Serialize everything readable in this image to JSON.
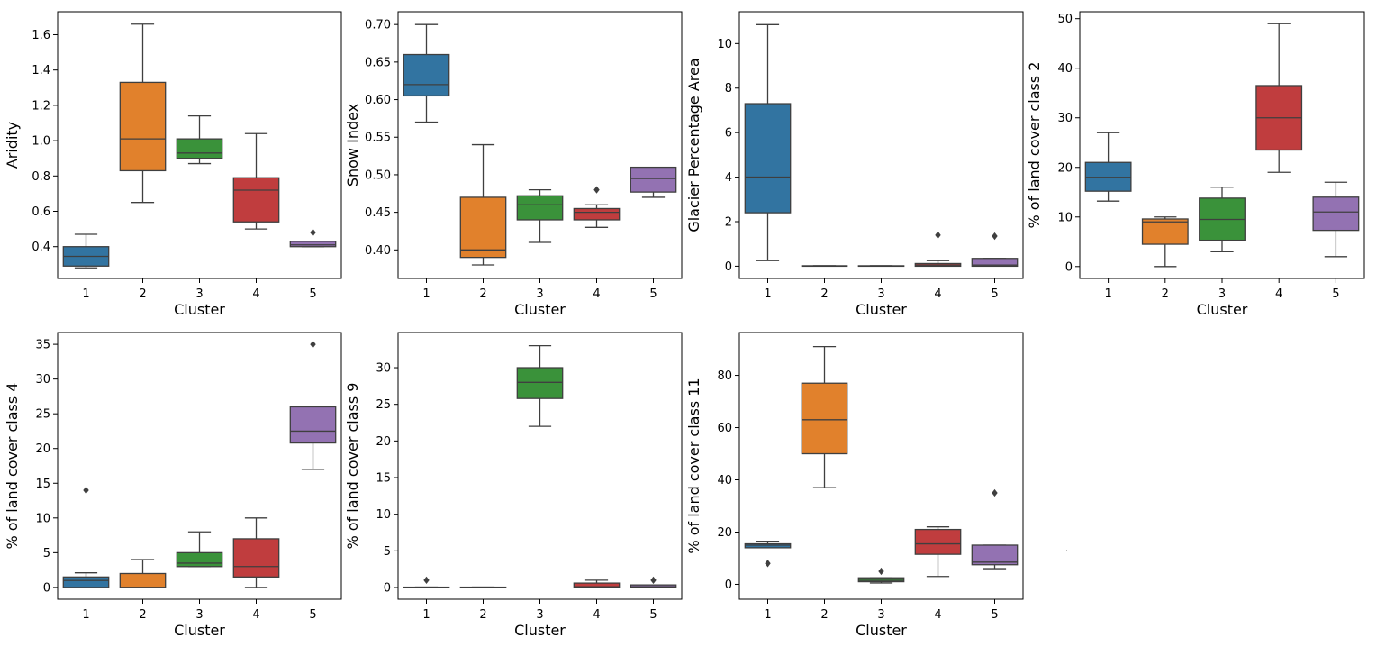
{
  "palette": [
    "#3274a1",
    "#e1812c",
    "#3a923a",
    "#c03d3e",
    "#9372b2"
  ],
  "chart_data": [
    {
      "type": "box",
      "xlabel": "Cluster",
      "ylabel": "Aridity",
      "categories": [
        "1",
        "2",
        "3",
        "4",
        "5"
      ],
      "ylim": [
        0.22,
        1.73
      ],
      "yticks": [
        0.4,
        0.6,
        0.8,
        1.0,
        1.2,
        1.4,
        1.6
      ],
      "yticklabels": [
        "0.4",
        "0.6",
        "0.8",
        "1.0",
        "1.2",
        "1.4",
        "1.6"
      ],
      "boxes": [
        {
          "q1": 0.29,
          "median": 0.345,
          "q3": 0.4,
          "lo": 0.28,
          "hi": 0.47,
          "outliers": []
        },
        {
          "q1": 0.83,
          "median": 1.01,
          "q3": 1.33,
          "lo": 0.65,
          "hi": 1.66,
          "outliers": []
        },
        {
          "q1": 0.9,
          "median": 0.93,
          "q3": 1.01,
          "lo": 0.87,
          "hi": 1.14,
          "outliers": []
        },
        {
          "q1": 0.54,
          "median": 0.72,
          "q3": 0.79,
          "lo": 0.5,
          "hi": 1.04,
          "outliers": []
        },
        {
          "q1": 0.4,
          "median": 0.41,
          "q3": 0.43,
          "lo": 0.4,
          "hi": 0.43,
          "outliers": [
            0.48
          ]
        }
      ]
    },
    {
      "type": "box",
      "xlabel": "Cluster",
      "ylabel": "Snow Index",
      "categories": [
        "1",
        "2",
        "3",
        "4",
        "5"
      ],
      "ylim": [
        0.362,
        0.717
      ],
      "yticks": [
        0.4,
        0.45,
        0.5,
        0.55,
        0.6,
        0.65,
        0.7
      ],
      "yticklabels": [
        "0.40",
        "0.45",
        "0.50",
        "0.55",
        "0.60",
        "0.65",
        "0.70"
      ],
      "boxes": [
        {
          "q1": 0.605,
          "median": 0.62,
          "q3": 0.66,
          "lo": 0.57,
          "hi": 0.7,
          "outliers": []
        },
        {
          "q1": 0.39,
          "median": 0.4,
          "q3": 0.47,
          "lo": 0.38,
          "hi": 0.54,
          "outliers": []
        },
        {
          "q1": 0.44,
          "median": 0.46,
          "q3": 0.472,
          "lo": 0.41,
          "hi": 0.48,
          "outliers": []
        },
        {
          "q1": 0.44,
          "median": 0.45,
          "q3": 0.455,
          "lo": 0.43,
          "hi": 0.46,
          "outliers": [
            0.48
          ]
        },
        {
          "q1": 0.477,
          "median": 0.495,
          "q3": 0.51,
          "lo": 0.47,
          "hi": 0.51,
          "outliers": []
        }
      ]
    },
    {
      "type": "box",
      "xlabel": "Cluster",
      "ylabel": "Glacier Percentage Area",
      "categories": [
        "1",
        "2",
        "3",
        "4",
        "5"
      ],
      "ylim": [
        -0.55,
        11.43
      ],
      "yticks": [
        0,
        2,
        4,
        6,
        8,
        10
      ],
      "yticklabels": [
        "0",
        "2",
        "4",
        "6",
        "8",
        "10"
      ],
      "boxes": [
        {
          "q1": 2.4,
          "median": 4.0,
          "q3": 7.3,
          "lo": 0.25,
          "hi": 10.85,
          "outliers": []
        },
        {
          "q1": 0.0,
          "median": 0.0,
          "q3": 0.02,
          "lo": 0.0,
          "hi": 0.02,
          "outliers": []
        },
        {
          "q1": 0.0,
          "median": 0.0,
          "q3": 0.02,
          "lo": 0.0,
          "hi": 0.02,
          "outliers": []
        },
        {
          "q1": 0.0,
          "median": 0.05,
          "q3": 0.12,
          "lo": 0.0,
          "hi": 0.25,
          "outliers": [
            1.4
          ]
        },
        {
          "q1": 0.0,
          "median": 0.05,
          "q3": 0.35,
          "lo": 0.0,
          "hi": 0.35,
          "outliers": [
            1.35
          ]
        }
      ]
    },
    {
      "type": "box",
      "xlabel": "Cluster",
      "ylabel": "% of land cover class 2",
      "categories": [
        "1",
        "2",
        "3",
        "4",
        "5"
      ],
      "ylim": [
        -2.4,
        51.4
      ],
      "yticks": [
        0,
        10,
        20,
        30,
        40,
        50
      ],
      "yticklabels": [
        "0",
        "10",
        "20",
        "30",
        "40",
        "50"
      ],
      "boxes": [
        {
          "q1": 15.2,
          "median": 18.0,
          "q3": 21.0,
          "lo": 13.2,
          "hi": 27.0,
          "outliers": []
        },
        {
          "q1": 4.5,
          "median": 9.0,
          "q3": 9.6,
          "lo": 0.0,
          "hi": 10.0,
          "outliers": []
        },
        {
          "q1": 5.3,
          "median": 9.5,
          "q3": 13.8,
          "lo": 3.0,
          "hi": 16.0,
          "outliers": []
        },
        {
          "q1": 23.5,
          "median": 30.0,
          "q3": 36.5,
          "lo": 19.0,
          "hi": 49.0,
          "outliers": []
        },
        {
          "q1": 7.3,
          "median": 11.0,
          "q3": 14.0,
          "lo": 2.0,
          "hi": 17.0,
          "outliers": []
        }
      ]
    },
    {
      "type": "box",
      "xlabel": "Cluster",
      "ylabel": "% of land cover class 4",
      "categories": [
        "1",
        "2",
        "3",
        "4",
        "5"
      ],
      "ylim": [
        -1.7,
        36.7
      ],
      "yticks": [
        0,
        5,
        10,
        15,
        20,
        25,
        30,
        35
      ],
      "yticklabels": [
        "0",
        "5",
        "10",
        "15",
        "20",
        "25",
        "30",
        "35"
      ],
      "boxes": [
        {
          "q1": 0.0,
          "median": 1.0,
          "q3": 1.5,
          "lo": 0.0,
          "hi": 2.1,
          "outliers": [
            14.0
          ]
        },
        {
          "q1": 0.0,
          "median": 0.0,
          "q3": 2.0,
          "lo": 0.0,
          "hi": 4.0,
          "outliers": []
        },
        {
          "q1": 3.0,
          "median": 3.5,
          "q3": 5.0,
          "lo": 3.0,
          "hi": 8.0,
          "outliers": []
        },
        {
          "q1": 1.5,
          "median": 3.0,
          "q3": 7.0,
          "lo": 0.0,
          "hi": 10.0,
          "outliers": []
        },
        {
          "q1": 20.8,
          "median": 22.5,
          "q3": 26.0,
          "lo": 17.0,
          "hi": 26.0,
          "outliers": [
            35.0
          ]
        }
      ]
    },
    {
      "type": "box",
      "xlabel": "Cluster",
      "ylabel": "% of land cover class 9",
      "categories": [
        "1",
        "2",
        "3",
        "4",
        "5"
      ],
      "ylim": [
        -1.6,
        34.8
      ],
      "yticks": [
        0,
        5,
        10,
        15,
        20,
        25,
        30
      ],
      "yticklabels": [
        "0",
        "5",
        "10",
        "15",
        "20",
        "25",
        "30"
      ],
      "boxes": [
        {
          "q1": 0.0,
          "median": 0.0,
          "q3": 0.05,
          "lo": 0.0,
          "hi": 0.05,
          "outliers": [
            1.0
          ]
        },
        {
          "q1": 0.0,
          "median": 0.0,
          "q3": 0.05,
          "lo": 0.0,
          "hi": 0.05,
          "outliers": []
        },
        {
          "q1": 25.8,
          "median": 28.0,
          "q3": 30.0,
          "lo": 22.0,
          "hi": 33.0,
          "outliers": []
        },
        {
          "q1": 0.0,
          "median": 0.1,
          "q3": 0.6,
          "lo": 0.0,
          "hi": 1.0,
          "outliers": []
        },
        {
          "q1": 0.0,
          "median": 0.1,
          "q3": 0.35,
          "lo": 0.0,
          "hi": 0.35,
          "outliers": [
            1.0
          ]
        }
      ]
    },
    {
      "type": "box",
      "xlabel": "Cluster",
      "ylabel": "% of land cover class 11",
      "categories": [
        "1",
        "2",
        "3",
        "4",
        "5"
      ],
      "ylim": [
        -5.7,
        96.4
      ],
      "yticks": [
        0,
        20,
        40,
        60,
        80
      ],
      "yticklabels": [
        "0",
        "20",
        "40",
        "60",
        "80"
      ],
      "boxes": [
        {
          "q1": 14.0,
          "median": 15.0,
          "q3": 15.5,
          "lo": 14.0,
          "hi": 16.5,
          "outliers": [
            8.0
          ]
        },
        {
          "q1": 50.0,
          "median": 63.0,
          "q3": 77.0,
          "lo": 37.0,
          "hi": 91.0,
          "outliers": []
        },
        {
          "q1": 1.0,
          "median": 1.5,
          "q3": 2.5,
          "lo": 0.5,
          "hi": 2.5,
          "outliers": [
            5.0
          ]
        },
        {
          "q1": 11.5,
          "median": 15.5,
          "q3": 21.0,
          "lo": 3.0,
          "hi": 22.0,
          "outliers": []
        },
        {
          "q1": 7.5,
          "median": 8.5,
          "q3": 15.0,
          "lo": 6.0,
          "hi": 15.0,
          "outliers": [
            35.0
          ]
        }
      ]
    }
  ]
}
